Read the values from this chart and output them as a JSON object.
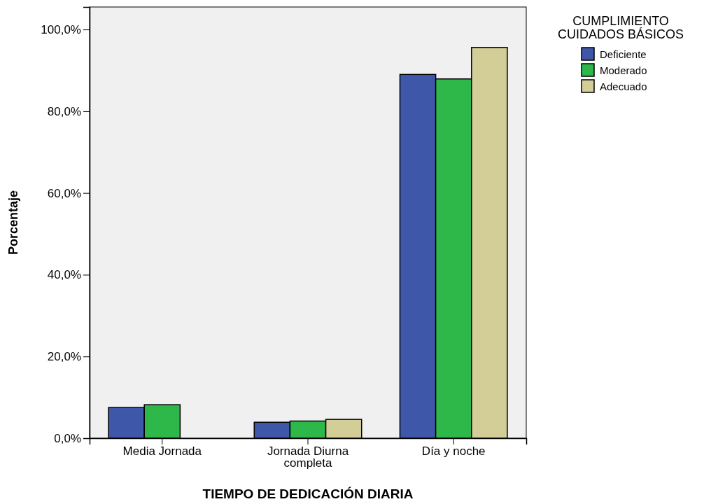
{
  "chart_data": {
    "type": "bar",
    "xlabel": "TIEMPO DE DEDICACIÓN DIARIA",
    "ylabel": "Porcentaje",
    "legend_title": "CUMPLIMIENTO CUIDADOS BÁSICOS",
    "categories": [
      "Media Jornada",
      "Jornada Diurna completa",
      "Día y noche"
    ],
    "series": [
      {
        "name": "Deficiente",
        "color": "#3f57a9",
        "values": [
          7.5,
          3.9,
          89.0
        ]
      },
      {
        "name": "Moderado",
        "color": "#2fb84a",
        "values": [
          8.2,
          4.2,
          87.9
        ]
      },
      {
        "name": "Adecuado",
        "color": "#d3ce98",
        "values": [
          0,
          4.6,
          95.6
        ]
      }
    ],
    "ylim": [
      0,
      105.5
    ],
    "yticks": [
      {
        "value": 0,
        "label": "0,0%"
      },
      {
        "value": 20,
        "label": "20,0%"
      },
      {
        "value": 40,
        "label": "40,0%"
      },
      {
        "value": 60,
        "label": "60,0%"
      },
      {
        "value": 80,
        "label": "80,0%"
      },
      {
        "value": 100,
        "label": "100,0%"
      }
    ],
    "grid": false,
    "legend": "top right"
  }
}
